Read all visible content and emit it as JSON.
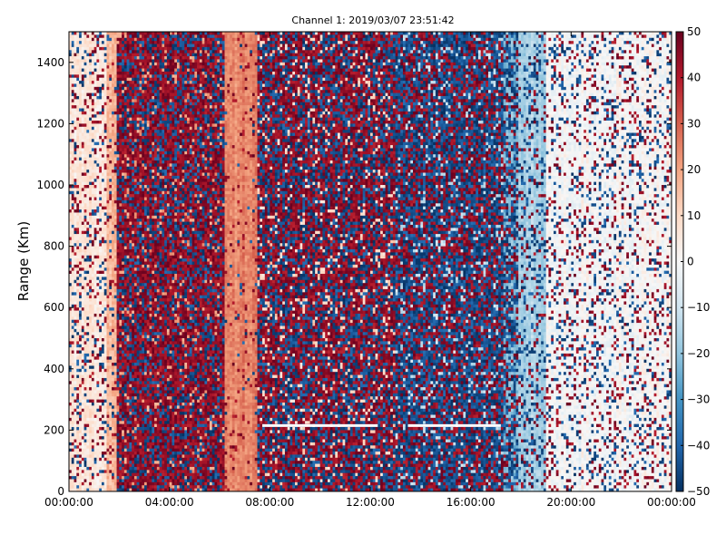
{
  "chart_data": {
    "type": "heatmap",
    "title": "Channel 1: 2019/03/07 23:51:42",
    "xlabel": "",
    "ylabel": "Range (Km)",
    "xlim": [
      "00:00:00",
      "24:00:00"
    ],
    "ylim": [
      0,
      1500
    ],
    "x_ticks": [
      "00:00:00",
      "04:00:00",
      "08:00:00",
      "12:00:00",
      "16:00:00",
      "20:00:00",
      "00:00:00"
    ],
    "y_ticks": [
      "0",
      "200",
      "400",
      "600",
      "800",
      "1000",
      "1200",
      "1400"
    ],
    "colorbar": {
      "range": [
        -50,
        50
      ],
      "ticks": [
        "50",
        "40",
        "30",
        "20",
        "10",
        "0",
        "−10",
        "−20",
        "−30",
        "−40",
        "−50"
      ],
      "colormap": "RdBu_r"
    },
    "colors": {
      "max": "#67001f",
      "mid": "#f7f7f7",
      "min": "#053061"
    },
    "bands": [
      {
        "x_start_hours": 0.0,
        "x_end_hours": 1.5,
        "mean": 6,
        "noise": 0.25
      },
      {
        "x_start_hours": 1.5,
        "x_end_hours": 1.9,
        "mean": 16,
        "noise": 0.15
      },
      {
        "x_start_hours": 1.9,
        "x_end_hours": 6.2,
        "mean": 20,
        "noise": 0.92
      },
      {
        "x_start_hours": 6.2,
        "x_end_hours": 7.5,
        "mean": 24,
        "noise": 0.08
      },
      {
        "x_start_hours": 7.5,
        "x_end_hours": 13.0,
        "mean": 10,
        "noise": 0.9
      },
      {
        "x_start_hours": 13.0,
        "x_end_hours": 17.3,
        "mean": -12,
        "noise": 0.9
      },
      {
        "x_start_hours": 17.3,
        "x_end_hours": 17.9,
        "mean": -22,
        "noise": 0.6
      },
      {
        "x_start_hours": 17.9,
        "x_end_hours": 19.0,
        "mean": -16,
        "noise": 0.25
      },
      {
        "x_start_hours": 19.0,
        "x_end_hours": 24.0,
        "mean": 0,
        "noise": 0.22
      }
    ],
    "white_line_segments": [
      {
        "range_km": 215,
        "x_start_hours": 7.7,
        "x_end_hours": 12.3
      },
      {
        "range_km": 215,
        "x_start_hours": 13.5,
        "x_end_hours": 17.2
      }
    ]
  }
}
